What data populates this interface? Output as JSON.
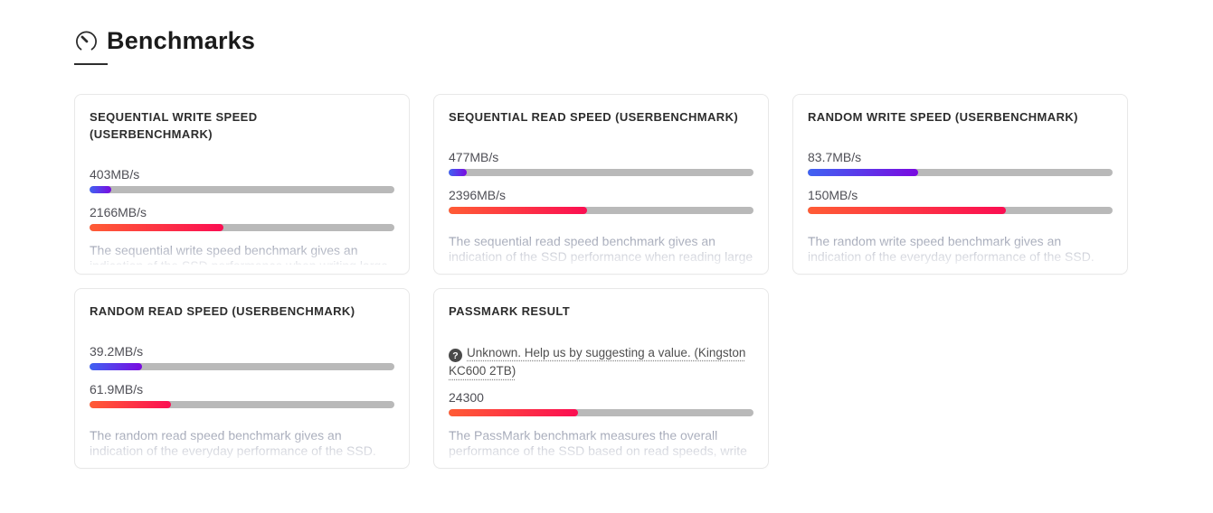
{
  "header": {
    "title": "Benchmarks",
    "icon": "gauge-icon"
  },
  "colors": {
    "bar_track": "#b9b9b9",
    "bar_blue_start": "#3f63f2",
    "bar_blue_end": "#7a0ae0",
    "bar_red_start": "#ff5c35",
    "bar_red_end": "#fb0e52",
    "card_border": "#e8e8e8",
    "title_text": "#2d2d2d",
    "value_text": "#4f4f56",
    "description_text": "#8d93a6",
    "link_text": "#4f4f4f"
  },
  "cards": [
    {
      "title": "SEQUENTIAL WRITE SPEED\n(USERBENCHMARK)",
      "bars": [
        {
          "label": "403MB/s",
          "percent": 7.1,
          "color": "blue"
        },
        {
          "label": "2166MB/s",
          "percent": 44,
          "color": "red"
        }
      ],
      "description": "The sequential write speed benchmark gives an indication of the SSD performance when writing large"
    },
    {
      "title": "SEQUENTIAL READ SPEED (USERBENCHMARK)",
      "bars": [
        {
          "label": "477MB/s",
          "percent": 5.8,
          "color": "blue"
        },
        {
          "label": "2396MB/s",
          "percent": 45.5,
          "color": "red"
        }
      ],
      "description": "The sequential read speed benchmark gives an indication of the SSD performance when reading large"
    },
    {
      "title": "RANDOM WRITE SPEED (USERBENCHMARK)",
      "bars": [
        {
          "label": "83.7MB/s",
          "percent": 36.3,
          "color": "blue"
        },
        {
          "label": "150MB/s",
          "percent": 65,
          "color": "red"
        }
      ],
      "description": "The random write speed benchmark gives an indication of the everyday performance of the SSD. The"
    },
    {
      "title": "RANDOM READ SPEED (USERBENCHMARK)",
      "bars": [
        {
          "label": "39.2MB/s",
          "percent": 17.1,
          "color": "blue"
        },
        {
          "label": "61.9MB/s",
          "percent": 26.8,
          "color": "red"
        }
      ],
      "description": "The random read speed benchmark gives an indication of the everyday performance of the SSD. The value"
    },
    {
      "title": "PASSMARK RESULT",
      "link": {
        "icon": "help-circle-icon",
        "icon_glyph": "?",
        "text": "Unknown. Help us by suggesting a value. (Kingston KC600 2TB)"
      },
      "bars": [
        {
          "label": "24300",
          "percent": 42.5,
          "color": "red"
        }
      ],
      "description": "The PassMark benchmark measures the overall performance of the SSD based on read speeds, write"
    }
  ]
}
